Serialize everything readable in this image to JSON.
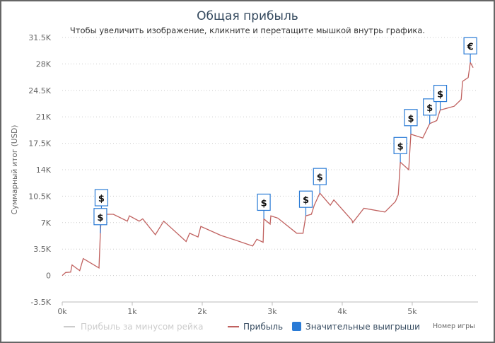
{
  "chart_data": {
    "type": "line",
    "title": "Общая прибыль",
    "subtitle": "Чтобы увеличить изображение, кликните и перетащите мышкой внутрь графика.",
    "xlabel": "Номер игры",
    "ylabel": "Суммарный итог (USD)",
    "xlim": [
      0,
      5940
    ],
    "ylim": [
      -3500,
      31500
    ],
    "x_ticks": [
      "0k",
      "1k",
      "2k",
      "3k",
      "4k",
      "5k"
    ],
    "x_tick_values": [
      0,
      1000,
      2000,
      3000,
      4000,
      5000
    ],
    "y_ticks": [
      "-3.5K",
      "0",
      "3.5K",
      "7K",
      "10.5K",
      "14K",
      "17.5K",
      "21K",
      "24.5K",
      "28K",
      "31.5K"
    ],
    "y_tick_values": [
      -3500,
      0,
      3500,
      7000,
      10500,
      14000,
      17500,
      21000,
      24500,
      28000,
      31500
    ],
    "grid": true,
    "legend_position": "bottom",
    "colors": {
      "profit": "#c0615f",
      "rake": "#cccccc",
      "markers": "#2a7bd6"
    },
    "series": [
      {
        "name": "Прибыль за минусом рейка",
        "hidden": true,
        "x": [],
        "y": []
      },
      {
        "name": "Прибыль",
        "x": [
          0,
          50,
          120,
          140,
          250,
          300,
          525,
          545,
          560,
          730,
          930,
          960,
          1100,
          1150,
          1330,
          1450,
          1770,
          1820,
          1940,
          1980,
          2270,
          2470,
          2720,
          2780,
          2870,
          2880,
          2970,
          2980,
          3080,
          3350,
          3440,
          3480,
          3560,
          3600,
          3680,
          3830,
          3880,
          4140,
          4150,
          4310,
          4610,
          4760,
          4800,
          4830,
          4950,
          4980,
          5150,
          5250,
          5350,
          5400,
          5600,
          5700,
          5720,
          5800,
          5830,
          5870
        ],
        "y": [
          0,
          400,
          450,
          1400,
          650,
          2250,
          1000,
          5600,
          8100,
          8100,
          7200,
          7900,
          7200,
          7500,
          5400,
          7200,
          4500,
          5600,
          5100,
          6500,
          5300,
          4700,
          3900,
          4800,
          4400,
          7500,
          6800,
          7900,
          7600,
          5600,
          5600,
          7900,
          8100,
          9300,
          10900,
          9300,
          10000,
          7300,
          7000,
          8900,
          8400,
          9800,
          10700,
          15000,
          14000,
          18700,
          18200,
          20100,
          20500,
          21900,
          22400,
          23300,
          25700,
          26200,
          28200,
          27500
        ]
      }
    ],
    "markers": {
      "name": "Значительные выигрыши",
      "points": [
        {
          "x": 560,
          "y": 8100,
          "symbol": "$"
        },
        {
          "x": 545,
          "y": 5600,
          "symbol": "$"
        },
        {
          "x": 2880,
          "y": 7500,
          "symbol": "$"
        },
        {
          "x": 3480,
          "y": 7900,
          "symbol": "$"
        },
        {
          "x": 3680,
          "y": 10900,
          "symbol": "$"
        },
        {
          "x": 4830,
          "y": 15000,
          "symbol": "$"
        },
        {
          "x": 4980,
          "y": 18700,
          "symbol": "$"
        },
        {
          "x": 5250,
          "y": 20100,
          "symbol": "$"
        },
        {
          "x": 5400,
          "y": 21900,
          "symbol": "$"
        },
        {
          "x": 5830,
          "y": 28200,
          "symbol": "€"
        }
      ]
    }
  }
}
